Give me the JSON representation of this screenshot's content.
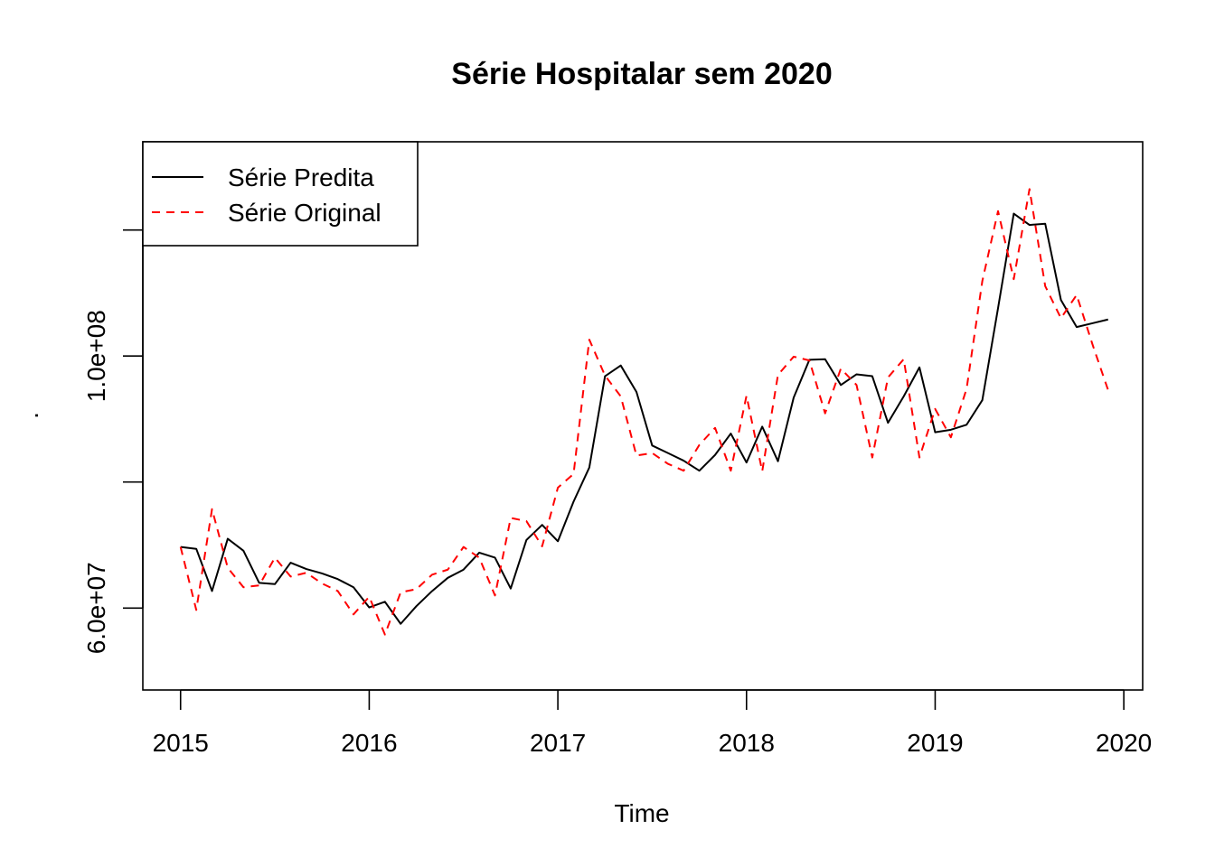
{
  "chart_data": {
    "type": "line",
    "title": "Série Hospitalar sem 2020",
    "xlabel": "Time",
    "ylabel": ".",
    "xlim": [
      2014.8,
      2020.1
    ],
    "ylim": [
      47000000,
      134000000
    ],
    "x_ticks": [
      {
        "value": 2015,
        "label": "2015"
      },
      {
        "value": 2016,
        "label": "2016"
      },
      {
        "value": 2017,
        "label": "2017"
      },
      {
        "value": 2018,
        "label": "2018"
      },
      {
        "value": 2019,
        "label": "2019"
      },
      {
        "value": 2020,
        "label": "2020"
      }
    ],
    "y_ticks": [
      {
        "value": 60000000,
        "label": "6.0e+07"
      },
      {
        "value": 80000000,
        "label": ""
      },
      {
        "value": 100000000,
        "label": "1.0e+08"
      },
      {
        "value": 120000000,
        "label": ""
      }
    ],
    "x_start": 2015,
    "x_step": 0.0833333,
    "legend_position": "top-left",
    "grid": false,
    "series": [
      {
        "name": "Série Predita",
        "color": "#000000",
        "dash": "solid",
        "values": [
          69700000,
          69400000,
          62700000,
          71000000,
          69100000,
          64000000,
          63800000,
          67200000,
          66200000,
          65500000,
          64600000,
          63300000,
          60100000,
          61000000,
          57500000,
          60300000,
          62700000,
          64800000,
          66100000,
          68800000,
          68000000,
          63100000,
          70800000,
          73200000,
          70600000,
          76900000,
          82300000,
          96800000,
          98500000,
          94300000,
          85800000,
          84600000,
          83400000,
          81800000,
          84300000,
          87700000,
          83100000,
          88800000,
          83300000,
          93400000,
          99400000,
          99500000,
          95400000,
          97100000,
          96800000,
          89400000,
          93600000,
          98200000,
          87900000,
          88300000,
          89100000,
          93000000,
          107600000,
          122600000,
          120800000,
          121000000,
          108900000,
          104600000,
          105200000,
          105800000
        ]
      },
      {
        "name": "Série Original",
        "color": "#ff0000",
        "dash": "dashed",
        "values": [
          69700000,
          59700000,
          75700000,
          66400000,
          63300000,
          63600000,
          68000000,
          65000000,
          65600000,
          63900000,
          62700000,
          59000000,
          61800000,
          55800000,
          62500000,
          63000000,
          65300000,
          66100000,
          69700000,
          68000000,
          62000000,
          74300000,
          73800000,
          69800000,
          79100000,
          81300000,
          102600000,
          96900000,
          93600000,
          84200000,
          84600000,
          82900000,
          81800000,
          85900000,
          88600000,
          81800000,
          93700000,
          81700000,
          97000000,
          99900000,
          99300000,
          90900000,
          98000000,
          95400000,
          83900000,
          96600000,
          99500000,
          83900000,
          91600000,
          87100000,
          94800000,
          111900000,
          123000000,
          112200000,
          126500000,
          111100000,
          106000000,
          109700000,
          101900000,
          94600000
        ]
      }
    ]
  }
}
